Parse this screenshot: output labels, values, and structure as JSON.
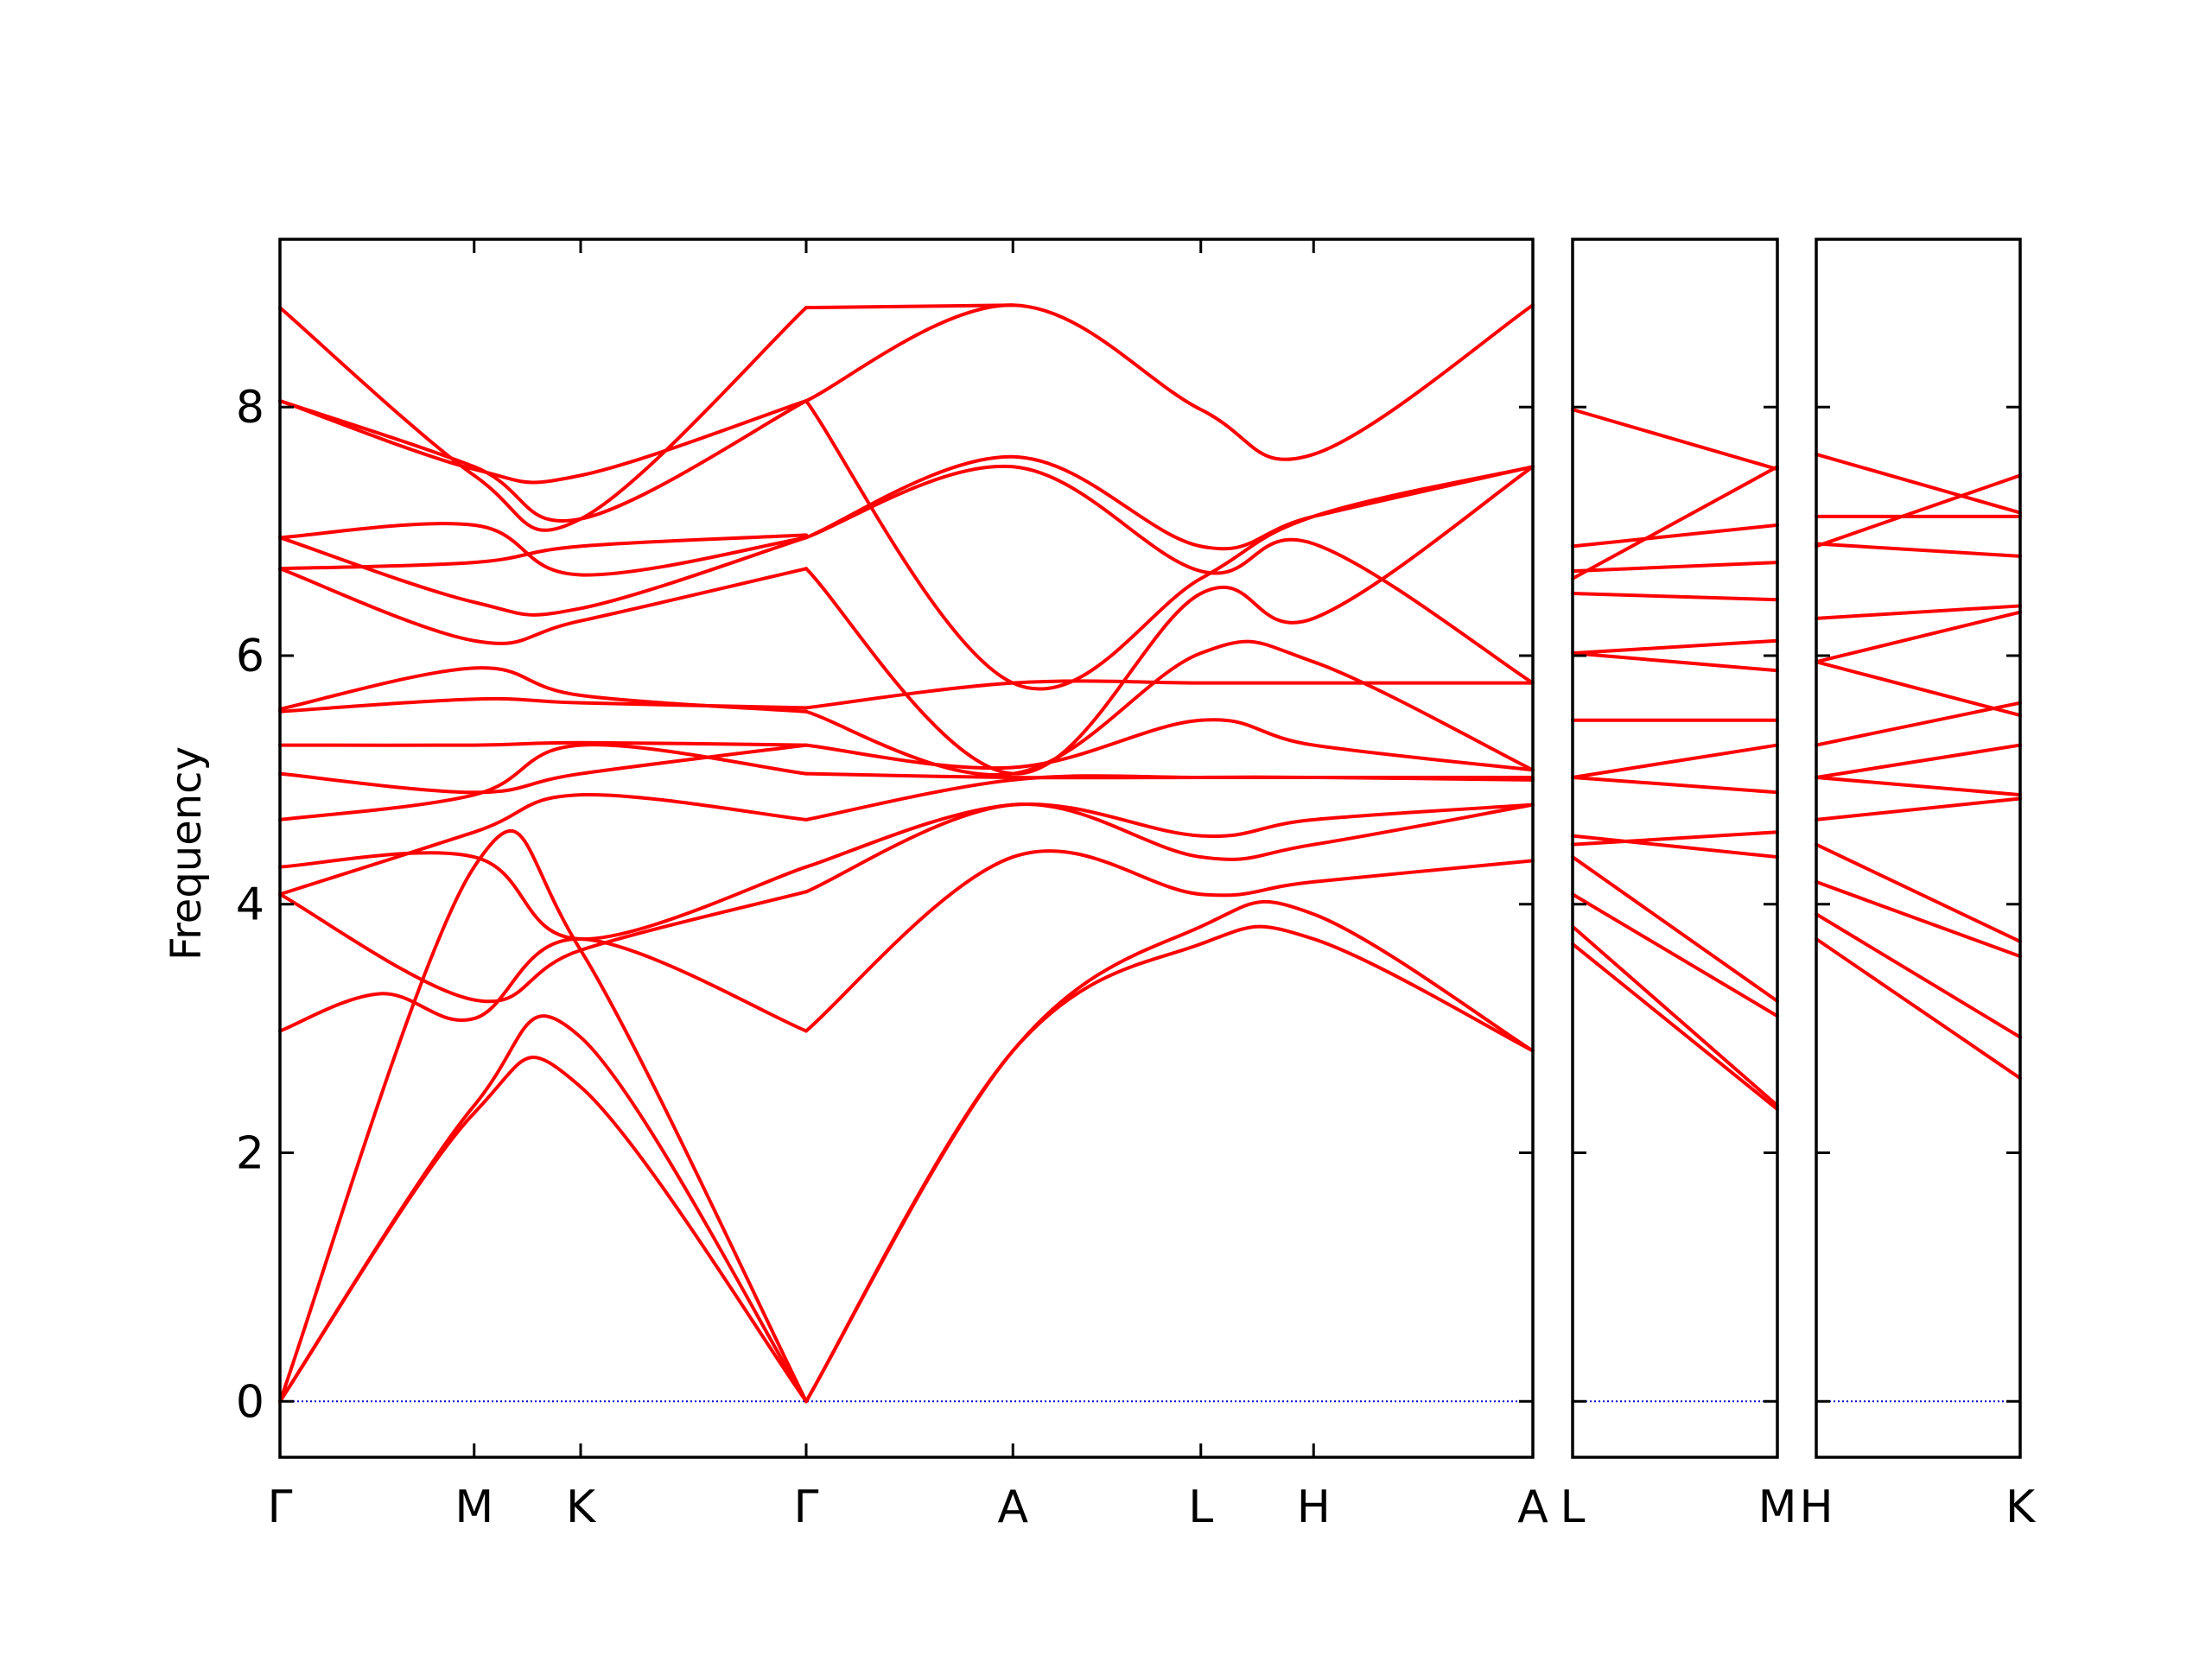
{
  "chart_data": {
    "type": "line",
    "title": "",
    "ylabel": "Frequency",
    "ylim": [
      -0.45,
      9.35
    ],
    "yticks": [
      0,
      2,
      4,
      6,
      8
    ],
    "y_tick_labels": [
      "0",
      "2",
      "4",
      "6",
      "8"
    ],
    "band_color": "#ff0000",
    "zero_line_color": "#0000cc",
    "grid": false,
    "legend": "none",
    "panels": [
      {
        "path": [
          "Γ",
          "M",
          "K",
          "Γ",
          "A",
          "L",
          "H",
          "A"
        ],
        "x_ticks": [
          0,
          0.155,
          0.24,
          0.42,
          0.585,
          0.735,
          0.825,
          1
        ],
        "bands": [
          {
            "x": [
              0,
              0.155,
              0.24,
              0.42
            ],
            "y": [
              0,
              2.32,
              2.53,
              0
            ]
          },
          {
            "x": [
              0,
              0.155,
              0.24,
              0.42
            ],
            "y": [
              0,
              2.38,
              2.93,
              0
            ]
          },
          {
            "x": [
              0,
              0.155,
              0.24,
              0.42
            ],
            "y": [
              0,
              4.3,
              3.63,
              0
            ]
          },
          {
            "x": [
              0,
              0.08,
              0.155,
              0.24,
              0.42
            ],
            "y": [
              2.98,
              3.28,
              3.08,
              3.72,
              2.98
            ]
          },
          {
            "x": [
              0,
              0.155,
              0.24,
              0.42
            ],
            "y": [
              4.08,
              3.23,
              3.63,
              4.1
            ]
          },
          {
            "x": [
              0,
              0.155,
              0.24,
              0.42
            ],
            "y": [
              4.3,
              4.38,
              3.72,
              4.3
            ]
          },
          {
            "x": [
              0,
              0.155,
              0.24,
              0.42
            ],
            "y": [
              4.08,
              4.58,
              4.88,
              4.68
            ]
          },
          {
            "x": [
              0,
              0.155,
              0.24,
              0.42
            ],
            "y": [
              4.68,
              4.88,
              5.28,
              5.05
            ]
          },
          {
            "x": [
              0,
              0.155,
              0.24,
              0.42
            ],
            "y": [
              5.05,
              4.9,
              5.05,
              5.28
            ]
          },
          {
            "x": [
              0,
              0.155,
              0.24,
              0.42
            ],
            "y": [
              5.28,
              5.28,
              5.3,
              5.28
            ]
          },
          {
            "x": [
              0,
              0.155,
              0.24,
              0.42
            ],
            "y": [
              5.55,
              5.65,
              5.62,
              5.58
            ]
          },
          {
            "x": [
              0,
              0.155,
              0.24,
              0.42
            ],
            "y": [
              5.57,
              5.9,
              5.68,
              5.55
            ]
          },
          {
            "x": [
              0,
              0.155,
              0.24,
              0.42
            ],
            "y": [
              6.7,
              6.12,
              6.28,
              6.7
            ]
          },
          {
            "x": [
              0,
              0.155,
              0.24,
              0.42
            ],
            "y": [
              6.95,
              6.43,
              6.38,
              6.95
            ]
          },
          {
            "x": [
              0,
              0.155,
              0.24,
              0.42
            ],
            "y": [
              6.7,
              6.75,
              6.88,
              6.97
            ]
          },
          {
            "x": [
              0,
              0.155,
              0.24,
              0.42
            ],
            "y": [
              6.95,
              7.05,
              6.65,
              6.95
            ]
          },
          {
            "x": [
              0,
              0.155,
              0.24,
              0.42
            ],
            "y": [
              8.05,
              7.52,
              7.1,
              8.05
            ]
          },
          {
            "x": [
              0,
              0.155,
              0.24,
              0.42
            ],
            "y": [
              8.05,
              7.5,
              7.45,
              8.05
            ]
          },
          {
            "x": [
              0,
              0.155,
              0.24,
              0.42
            ],
            "y": [
              8.8,
              7.45,
              7.1,
              8.8
            ]
          },
          {
            "x": [
              0.42,
              0.585,
              0.735,
              0.825,
              1
            ],
            "y": [
              0,
              2.82,
              3.68,
              3.72,
              2.82
            ]
          },
          {
            "x": [
              0.42,
              0.585,
              0.735,
              0.825,
              1
            ],
            "y": [
              0,
              2.82,
              3.82,
              3.92,
              2.82
            ]
          },
          {
            "x": [
              0.42,
              0.585,
              0.735,
              0.825,
              1
            ],
            "y": [
              2.98,
              4.38,
              4.08,
              4.18,
              4.35
            ]
          },
          {
            "x": [
              0.42,
              0.585,
              0.735,
              0.825,
              1
            ],
            "y": [
              4.1,
              4.8,
              4.38,
              4.48,
              4.8
            ]
          },
          {
            "x": [
              0.42,
              0.585,
              0.735,
              0.825,
              1
            ],
            "y": [
              4.3,
              4.8,
              4.55,
              4.68,
              4.8
            ]
          },
          {
            "x": [
              0.42,
              0.585,
              0.735,
              0.825,
              1
            ],
            "y": [
              4.68,
              5.0,
              5.02,
              5.02,
              5.0
            ]
          },
          {
            "x": [
              0.42,
              0.585,
              0.735,
              0.825,
              1
            ],
            "y": [
              5.05,
              5.02,
              5.02,
              5.02,
              5.02
            ]
          },
          {
            "x": [
              0.42,
              0.585,
              0.735,
              0.825,
              1
            ],
            "y": [
              5.28,
              5.1,
              5.48,
              5.28,
              5.08
            ]
          },
          {
            "x": [
              0.42,
              0.585,
              0.735,
              0.825,
              1
            ],
            "y": [
              5.55,
              5.05,
              6.02,
              5.95,
              5.08
            ]
          },
          {
            "x": [
              0.42,
              0.585,
              0.735,
              0.825,
              1
            ],
            "y": [
              5.58,
              5.78,
              5.78,
              5.78,
              5.78
            ]
          },
          {
            "x": [
              0.42,
              0.585,
              0.735,
              0.825,
              1
            ],
            "y": [
              6.7,
              5.05,
              6.5,
              6.3,
              7.52
            ]
          },
          {
            "x": [
              0.42,
              0.585,
              0.735,
              0.825,
              1
            ],
            "y": [
              6.95,
              7.52,
              6.68,
              6.9,
              5.78
            ]
          },
          {
            "x": [
              0.42,
              0.585,
              0.735,
              0.825,
              1
            ],
            "y": [
              6.95,
              7.6,
              6.88,
              7.12,
              7.52
            ]
          },
          {
            "x": [
              0.42,
              0.585,
              0.735,
              0.825,
              1
            ],
            "y": [
              8.05,
              5.78,
              6.62,
              7.12,
              7.52
            ]
          },
          {
            "x": [
              0.42,
              0.585,
              0.735,
              0.825,
              1
            ],
            "y": [
              8.05,
              8.82,
              7.98,
              7.62,
              8.82
            ]
          },
          {
            "x": [
              0.42,
              0.585
            ],
            "y": [
              8.8,
              8.82
            ]
          }
        ]
      },
      {
        "path": [
          "L",
          "M"
        ],
        "x_ticks": [
          0,
          1
        ],
        "bands": [
          {
            "x": [
              0,
              1
            ],
            "y": [
              3.68,
              2.35
            ]
          },
          {
            "x": [
              0,
              1
            ],
            "y": [
              3.82,
              2.38
            ]
          },
          {
            "x": [
              0,
              1
            ],
            "y": [
              4.08,
              3.1
            ]
          },
          {
            "x": [
              0,
              1
            ],
            "y": [
              4.38,
              3.22
            ]
          },
          {
            "x": [
              0,
              1
            ],
            "y": [
              4.55,
              4.38
            ]
          },
          {
            "x": [
              0,
              1
            ],
            "y": [
              4.48,
              4.58
            ]
          },
          {
            "x": [
              0,
              1
            ],
            "y": [
              5.02,
              4.9
            ]
          },
          {
            "x": [
              0,
              1
            ],
            "y": [
              5.02,
              5.28
            ]
          },
          {
            "x": [
              0,
              1
            ],
            "y": [
              5.48,
              5.48
            ]
          },
          {
            "x": [
              0,
              1
            ],
            "y": [
              6.02,
              5.88
            ]
          },
          {
            "x": [
              0,
              1
            ],
            "y": [
              6.02,
              6.12
            ]
          },
          {
            "x": [
              0,
              1
            ],
            "y": [
              6.5,
              6.45
            ]
          },
          {
            "x": [
              0,
              1
            ],
            "y": [
              6.68,
              6.75
            ]
          },
          {
            "x": [
              0,
              1
            ],
            "y": [
              6.88,
              7.05
            ]
          },
          {
            "x": [
              0,
              1
            ],
            "y": [
              6.62,
              7.52
            ]
          },
          {
            "x": [
              0,
              1
            ],
            "y": [
              7.98,
              7.5
            ]
          }
        ]
      },
      {
        "path": [
          "H",
          "K"
        ],
        "x_ticks": [
          0,
          1
        ],
        "bands": [
          {
            "x": [
              0,
              1
            ],
            "y": [
              3.72,
              2.6
            ]
          },
          {
            "x": [
              0,
              1
            ],
            "y": [
              3.92,
              2.93
            ]
          },
          {
            "x": [
              0,
              1
            ],
            "y": [
              4.18,
              3.58
            ]
          },
          {
            "x": [
              0,
              1
            ],
            "y": [
              4.48,
              3.7
            ]
          },
          {
            "x": [
              0,
              1
            ],
            "y": [
              4.68,
              4.85
            ]
          },
          {
            "x": [
              0,
              1
            ],
            "y": [
              5.02,
              4.88
            ]
          },
          {
            "x": [
              0,
              1
            ],
            "y": [
              5.02,
              5.28
            ]
          },
          {
            "x": [
              0,
              1
            ],
            "y": [
              5.28,
              5.62
            ]
          },
          {
            "x": [
              0,
              1
            ],
            "y": [
              5.95,
              5.52
            ]
          },
          {
            "x": [
              0,
              1
            ],
            "y": [
              5.95,
              6.35
            ]
          },
          {
            "x": [
              0,
              1
            ],
            "y": [
              6.3,
              6.4
            ]
          },
          {
            "x": [
              0,
              1
            ],
            "y": [
              6.9,
              6.8
            ]
          },
          {
            "x": [
              0,
              1
            ],
            "y": [
              7.12,
              7.12
            ]
          },
          {
            "x": [
              0,
              1
            ],
            "y": [
              6.88,
              7.45
            ]
          },
          {
            "x": [
              0,
              1
            ],
            "y": [
              7.62,
              7.15
            ]
          }
        ]
      }
    ]
  }
}
